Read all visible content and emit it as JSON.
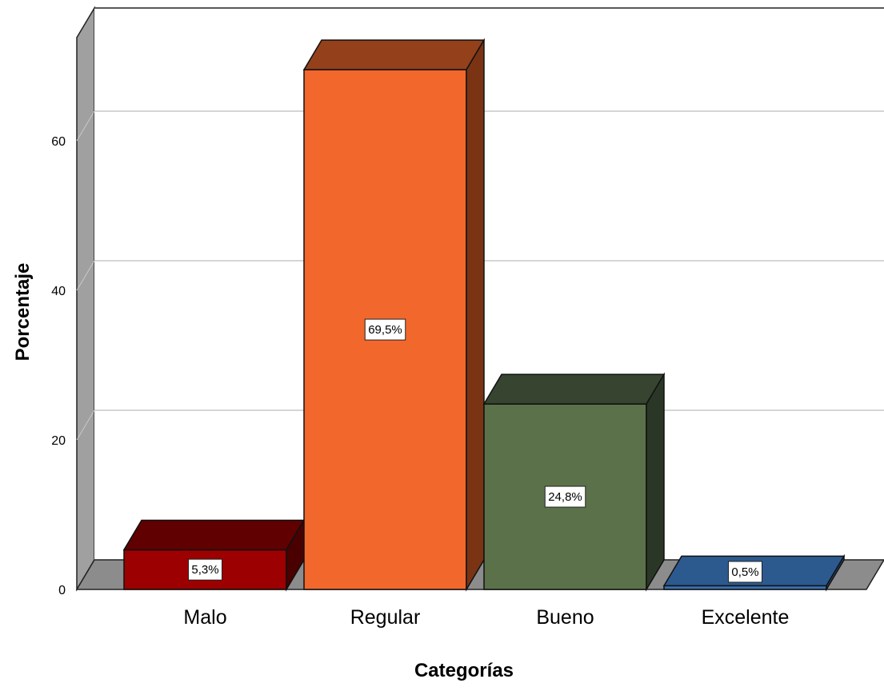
{
  "chart_data": {
    "type": "bar",
    "title": "",
    "xlabel": "Categorías",
    "ylabel": "Porcentaje",
    "categories": [
      "Malo",
      "Regular",
      "Bueno",
      "Excelente"
    ],
    "values": [
      5.3,
      69.5,
      24.8,
      0.5
    ],
    "data_labels": [
      "5,3%",
      "69,5%",
      "24,8%",
      "0,5%"
    ],
    "yticks": [
      0,
      20,
      40,
      60
    ],
    "ylim": [
      0,
      75
    ],
    "grid": true,
    "legend": "none",
    "style": "3d",
    "colors": [
      {
        "front": "#9c0000",
        "top": "#600000",
        "side": "#4a0000"
      },
      {
        "front": "#f2672b",
        "top": "#93401b",
        "side": "#7a3414"
      },
      {
        "front": "#5b714a",
        "top": "#374530",
        "side": "#2b3726"
      },
      {
        "front": "#3a6fb0",
        "top": "#2c5a8f",
        "side": "#234a75"
      }
    ]
  }
}
